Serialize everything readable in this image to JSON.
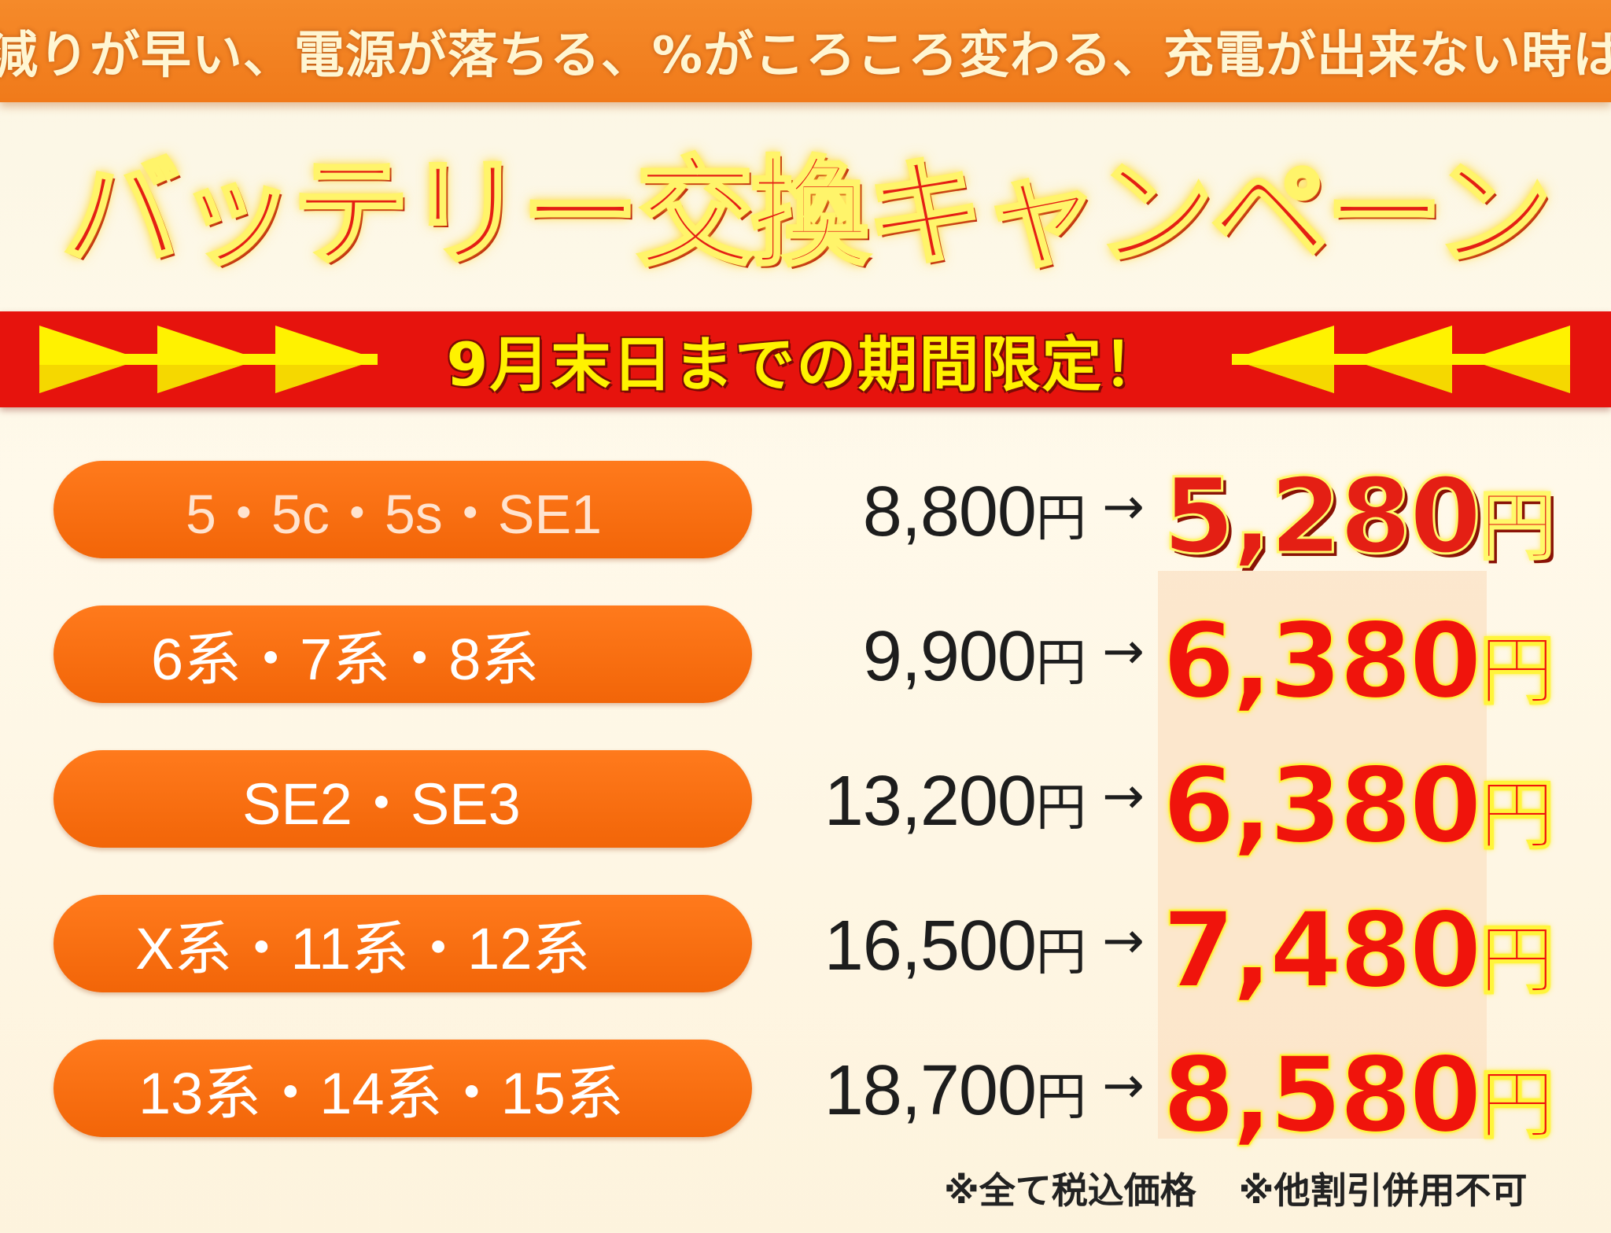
{
  "header": {
    "tagline": "減りが早い、電源が落ちる、%がころころ変わる、充電が出来ない時は"
  },
  "title": "バッテリー交換キャンペーン",
  "banner": {
    "label": "9月末日までの期間限定！"
  },
  "colors": {
    "orange": "#f58a2a",
    "red": "#e6130d",
    "yellow": "#fff200",
    "background": "#fbf6e4"
  },
  "currency": "円",
  "arrow": "→",
  "price_rows": [
    {
      "models": "5・5c・5s・SE1",
      "regular_price": "8,800",
      "campaign_price": "5,280"
    },
    {
      "models": "6系・7系・8系",
      "regular_price": "9,900",
      "campaign_price": "6,380"
    },
    {
      "models": "SE2・SE3",
      "regular_price": "13,200",
      "campaign_price": "6,380"
    },
    {
      "models": "X系・11系・12系",
      "regular_price": "16,500",
      "campaign_price": "7,480"
    },
    {
      "models": "13系・14系・15系",
      "regular_price": "18,700",
      "campaign_price": "8,580"
    }
  ],
  "footnotes": {
    "tax": "※全て税込価格",
    "discount": "※他割引併用不可"
  }
}
